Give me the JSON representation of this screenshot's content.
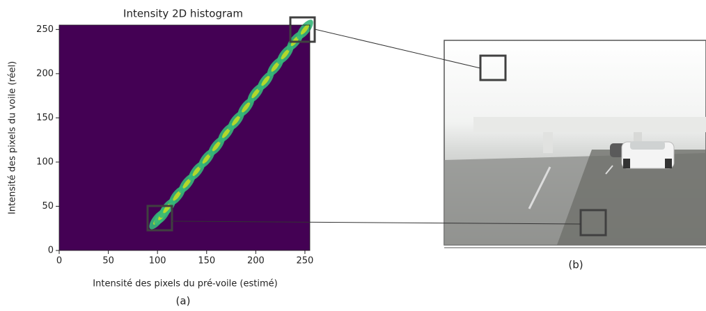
{
  "chart_data": {
    "type": "hist2d",
    "title": "Intensity 2D histogram",
    "x_label": "Intensité des pixels du pré-voile (estimé)",
    "y_label": "Intensité des pixels du voile (réel)",
    "x": [
      100,
      105,
      110,
      120,
      130,
      140,
      150,
      160,
      170,
      180,
      190,
      200,
      210,
      220,
      230,
      240,
      250
    ],
    "y": [
      35,
      40,
      48,
      62,
      76,
      90,
      104,
      118,
      133,
      147,
      162,
      178,
      192,
      208,
      222,
      237,
      250
    ],
    "xlim": [
      0,
      255
    ],
    "ylim": [
      0,
      255
    ],
    "xticks": [
      0,
      50,
      100,
      150,
      200,
      250
    ],
    "yticks": [
      0,
      50,
      100,
      150,
      200,
      250
    ],
    "background": "#440154",
    "color": "#35b779",
    "core_color": "#c8e020",
    "annotations": [
      "(a)",
      "(b)"
    ]
  }
}
